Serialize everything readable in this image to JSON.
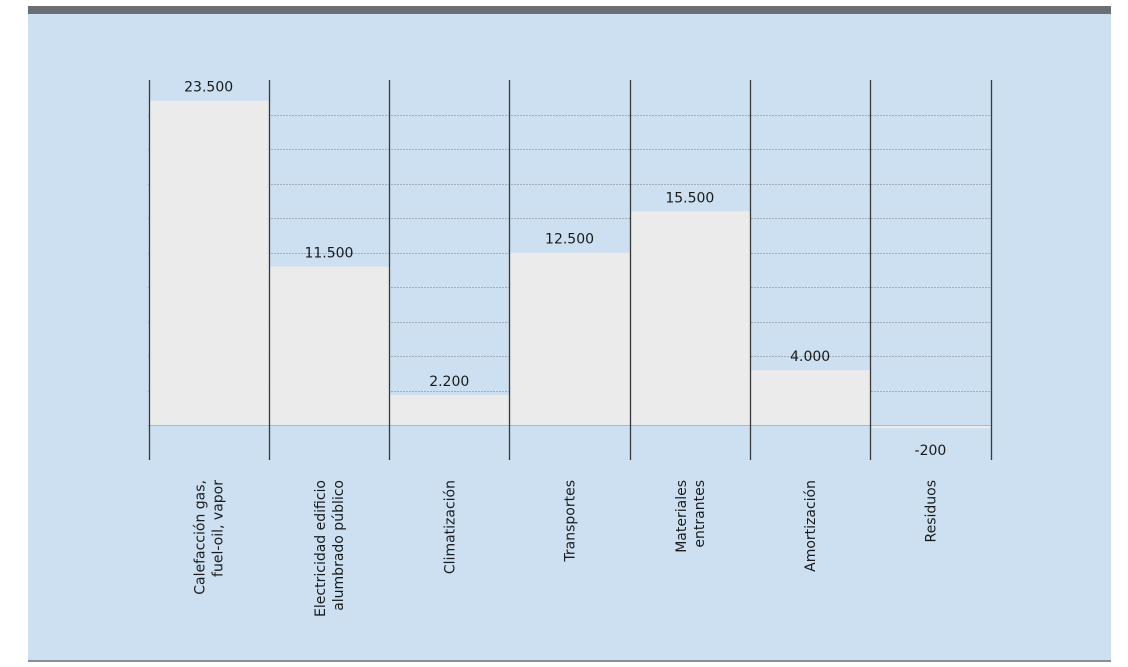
{
  "colors": {
    "background": "#cce0f1",
    "bar": "#ebebeb",
    "grid": "#7a7d80",
    "axis": "#3a3a3a"
  },
  "chart_data": {
    "type": "bar",
    "categories": [
      [
        "Calefacción gas,",
        "fuel-oil, vapor"
      ],
      [
        "Electricidad edificio",
        "alumbrado público"
      ],
      [
        "Climatización"
      ],
      [
        "Transportes"
      ],
      [
        "Materiales",
        "entrantes"
      ],
      [
        "Amortización"
      ],
      [
        "Residuos"
      ]
    ],
    "values": [
      23500,
      11500,
      2200,
      12500,
      15500,
      4000,
      -200
    ],
    "value_labels": [
      "23.500",
      "11.500",
      "2.200",
      "12.500",
      "15.500",
      "4.000",
      "-200"
    ],
    "ylim": [
      -2500,
      25000
    ],
    "grid_step": 2500,
    "grid": true
  }
}
